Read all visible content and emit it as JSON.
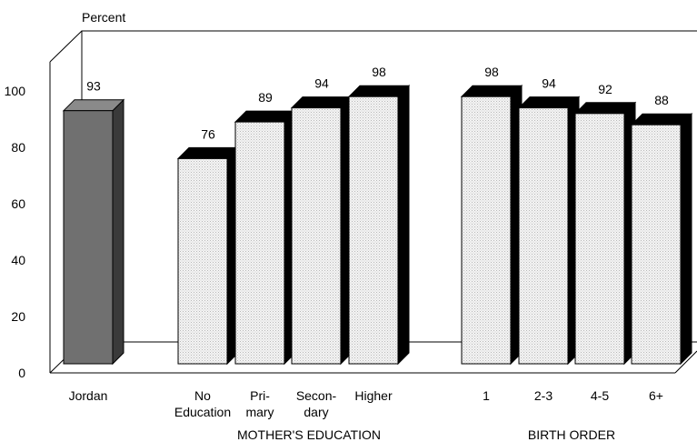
{
  "chart_data": {
    "type": "bar",
    "ylabel": "Percent",
    "ylim": [
      0,
      100
    ],
    "yticks": [
      0,
      20,
      40,
      60,
      80,
      100
    ],
    "grid": false,
    "bars": [
      {
        "label": [
          "Jordan"
        ],
        "value": 93,
        "group": "",
        "color": "#707070"
      },
      {
        "label": [
          "No",
          "Education"
        ],
        "value": 76,
        "group": "MOTHER'S EDUCATION",
        "color": "#ececec"
      },
      {
        "label": [
          "Pri-",
          "mary"
        ],
        "value": 89,
        "group": "MOTHER'S EDUCATION",
        "color": "#ececec"
      },
      {
        "label": [
          "Secon-",
          "dary"
        ],
        "value": 94,
        "group": "MOTHER'S EDUCATION",
        "color": "#ececec"
      },
      {
        "label": [
          "Higher"
        ],
        "value": 98,
        "group": "MOTHER'S EDUCATION",
        "color": "#ececec"
      },
      {
        "label": [
          "1"
        ],
        "value": 98,
        "group": "BIRTH ORDER",
        "color": "#ececec"
      },
      {
        "label": [
          "2-3"
        ],
        "value": 94,
        "group": "BIRTH ORDER",
        "color": "#ececec"
      },
      {
        "label": [
          "4-5"
        ],
        "value": 92,
        "group": "BIRTH ORDER",
        "color": "#ececec"
      },
      {
        "label": [
          "6+"
        ],
        "value": 88,
        "group": "BIRTH ORDER",
        "color": "#ececec"
      }
    ],
    "groups": [
      "MOTHER'S EDUCATION",
      "BIRTH ORDER"
    ]
  }
}
